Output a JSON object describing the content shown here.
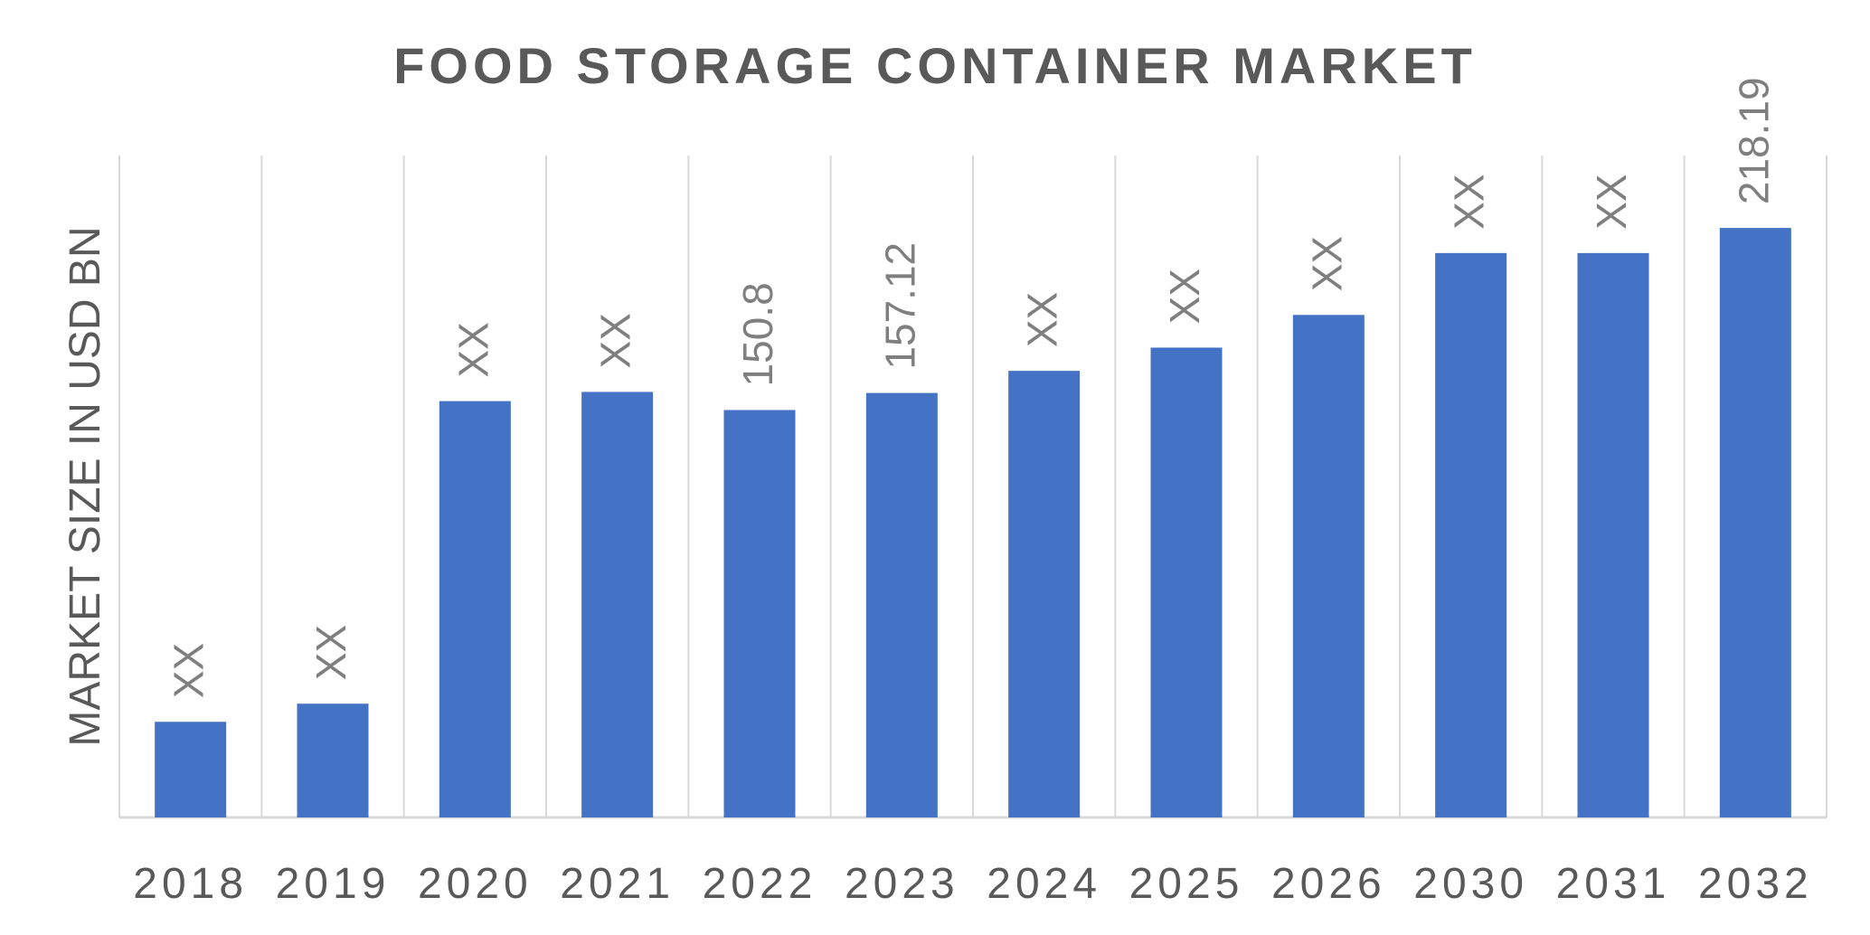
{
  "chart_data": {
    "type": "bar",
    "title": "FOOD STORAGE CONTAINER MARKET",
    "xlabel": "",
    "ylabel": "MARKET SIZE IN USD BN",
    "categories": [
      "2018",
      "2019",
      "2020",
      "2021",
      "2022",
      "2023",
      "2024",
      "2025",
      "2026",
      "2030",
      "2031",
      "2032"
    ],
    "values": [
      35.4,
      42.1,
      154.1,
      157.5,
      150.8,
      157.12,
      165.3,
      173.9,
      186.0,
      208.9,
      208.9,
      218.19
    ],
    "data_labels": [
      "XX",
      "XX",
      "XX",
      "XX",
      "150.8",
      "157.12",
      "XX",
      "XX",
      "XX",
      "XX",
      "XX",
      "218.19"
    ],
    "ylim": [
      0,
      245
    ],
    "grid": "vertical",
    "legend": "none",
    "bar_color": "#4472C4",
    "text_color": "#595959",
    "label_color": "#7F7F7F",
    "grid_color": "#D9D9D9"
  }
}
